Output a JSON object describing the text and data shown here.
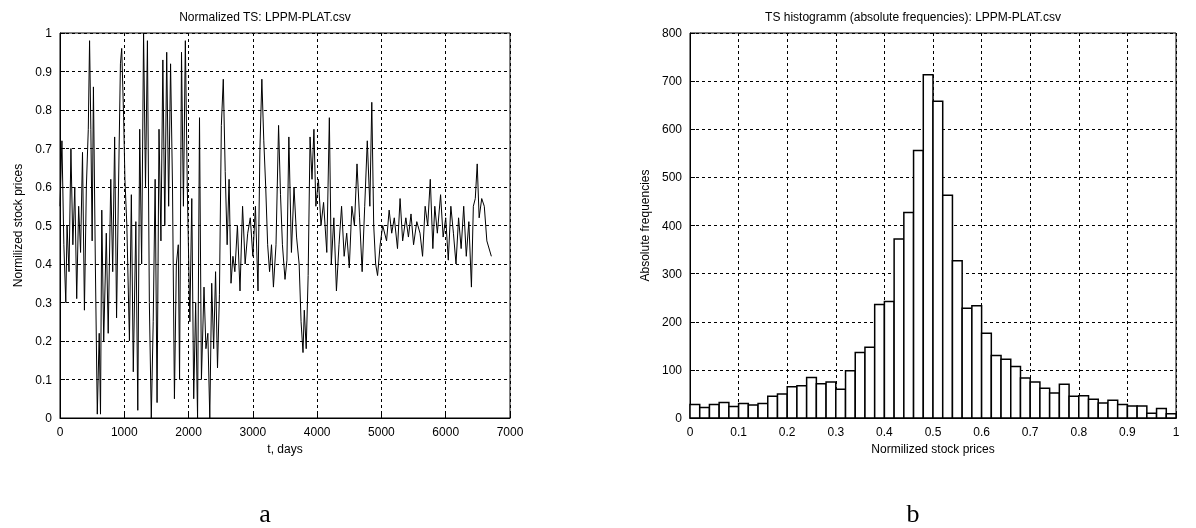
{
  "chart_data": [
    {
      "type": "line",
      "title": "Normalized TS: LPPM-PLAT.csv",
      "xlabel": "t, days",
      "ylabel": "Normilized stock prices",
      "color": "#000000",
      "x": [
        0,
        30,
        60,
        90,
        110,
        140,
        170,
        200,
        230,
        260,
        290,
        320,
        350,
        380,
        410,
        440,
        460,
        480,
        500,
        520,
        550,
        580,
        610,
        630,
        650,
        680,
        720,
        750,
        790,
        820,
        850,
        880,
        910,
        940,
        960,
        990,
        1010,
        1040,
        1080,
        1110,
        1140,
        1180,
        1210,
        1240,
        1270,
        1300,
        1330,
        1360,
        1390,
        1420,
        1450,
        1480,
        1510,
        1540,
        1570,
        1600,
        1630,
        1660,
        1690,
        1720,
        1750,
        1780,
        1810,
        1840,
        1860,
        1890,
        1920,
        1950,
        1980,
        2020,
        2050,
        2080,
        2110,
        2140,
        2170,
        2200,
        2240,
        2270,
        2300,
        2330,
        2360,
        2390,
        2420,
        2450,
        2480,
        2510,
        2540,
        2570,
        2600,
        2630,
        2660,
        2690,
        2720,
        2760,
        2800,
        2840,
        2880,
        2920,
        2960,
        3000,
        3040,
        3080,
        3110,
        3140,
        3170,
        3200,
        3230,
        3260,
        3290,
        3320,
        3360,
        3400,
        3430,
        3460,
        3500,
        3530,
        3560,
        3600,
        3640,
        3680,
        3720,
        3750,
        3780,
        3800,
        3830,
        3860,
        3890,
        3920,
        3950,
        3980,
        4020,
        4060,
        4100,
        4150,
        4190,
        4220,
        4260,
        4300,
        4340,
        4380,
        4420,
        4460,
        4500,
        4540,
        4580,
        4620,
        4660,
        4700,
        4740,
        4780,
        4820,
        4850,
        4880,
        4910,
        4940,
        4980,
        5020,
        5080,
        5120,
        5160,
        5200,
        5250,
        5290,
        5330,
        5380,
        5420,
        5460,
        5500,
        5550,
        5600,
        5640,
        5680,
        5720,
        5760,
        5800,
        5830,
        5870,
        5920,
        5960,
        6000,
        6040,
        6080,
        6120,
        6160,
        6200,
        6240,
        6280,
        6320,
        6360,
        6400,
        6430,
        6460,
        6490,
        6520,
        6560,
        6600,
        6640,
        6710
      ],
      "values": [
        0.55,
        0.72,
        0.45,
        0.3,
        0.5,
        0.38,
        0.7,
        0.45,
        0.6,
        0.31,
        0.55,
        0.43,
        0.69,
        0.28,
        0.6,
        0.75,
        0.98,
        0.75,
        0.46,
        0.86,
        0.4,
        0.01,
        0.22,
        0.01,
        0.54,
        0.2,
        0.48,
        0.22,
        0.62,
        0.38,
        0.73,
        0.26,
        0.6,
        0.92,
        0.96,
        0.78,
        0.62,
        0.5,
        0.2,
        0.58,
        0.12,
        0.51,
        0.02,
        0.75,
        0.4,
        1.0,
        0.6,
        0.98,
        0.3,
        0.0,
        0.25,
        0.62,
        0.04,
        0.75,
        0.46,
        0.93,
        0.5,
        0.95,
        0.55,
        0.92,
        0.6,
        0.05,
        0.4,
        0.45,
        0.1,
        0.95,
        0.55,
        0.98,
        0.6,
        0.25,
        0.57,
        0.05,
        0.3,
        0.0,
        0.78,
        0.1,
        0.34,
        0.18,
        0.22,
        0.0,
        0.35,
        0.18,
        0.38,
        0.13,
        0.32,
        0.76,
        0.88,
        0.64,
        0.45,
        0.62,
        0.35,
        0.42,
        0.38,
        0.5,
        0.33,
        0.55,
        0.4,
        0.48,
        0.52,
        0.42,
        0.55,
        0.33,
        0.7,
        0.88,
        0.72,
        0.6,
        0.45,
        0.38,
        0.45,
        0.34,
        0.45,
        0.76,
        0.58,
        0.45,
        0.36,
        0.41,
        0.73,
        0.43,
        0.6,
        0.47,
        0.4,
        0.25,
        0.17,
        0.28,
        0.18,
        0.37,
        0.73,
        0.62,
        0.75,
        0.55,
        0.62,
        0.5,
        0.56,
        0.43,
        0.78,
        0.4,
        0.52,
        0.33,
        0.45,
        0.55,
        0.42,
        0.48,
        0.39,
        0.55,
        0.5,
        0.66,
        0.52,
        0.38,
        0.55,
        0.72,
        0.55,
        0.82,
        0.5,
        0.4,
        0.37,
        0.45,
        0.5,
        0.46,
        0.54,
        0.48,
        0.52,
        0.44,
        0.57,
        0.46,
        0.52,
        0.47,
        0.53,
        0.45,
        0.51,
        0.48,
        0.42,
        0.55,
        0.5,
        0.62,
        0.44,
        0.55,
        0.48,
        0.58,
        0.47,
        0.52,
        0.41,
        0.55,
        0.48,
        0.4,
        0.52,
        0.44,
        0.55,
        0.42,
        0.51,
        0.34,
        0.55,
        0.57,
        0.66,
        0.52,
        0.57,
        0.55,
        0.46,
        0.42
      ],
      "xlim": [
        0,
        7000
      ],
      "xticks": [
        0,
        1000,
        2000,
        3000,
        4000,
        5000,
        6000,
        7000
      ],
      "ylim": [
        0,
        1
      ],
      "yticks": [
        0,
        0.1,
        0.2,
        0.3,
        0.4,
        0.5,
        0.6,
        0.7,
        0.8,
        0.9,
        1
      ],
      "grid": true,
      "marker": "none",
      "annotations": [
        "a"
      ]
    },
    {
      "type": "histogram",
      "title": "TS histogramm (absolute frequencies): LPPM-PLAT.csv",
      "xlabel": "Normilized stock prices",
      "ylabel": "Absolute frequencies",
      "color": "#ffffff",
      "bins": [
        0,
        0.02,
        0.04,
        0.06,
        0.08,
        0.1,
        0.12,
        0.14,
        0.16,
        0.18,
        0.2,
        0.22,
        0.24,
        0.26,
        0.28,
        0.3,
        0.32,
        0.34,
        0.36,
        0.38,
        0.4,
        0.42,
        0.44,
        0.46,
        0.48,
        0.5,
        0.52,
        0.54,
        0.56,
        0.58,
        0.6,
        0.62,
        0.64,
        0.66,
        0.68,
        0.7,
        0.72,
        0.74,
        0.76,
        0.78,
        0.8,
        0.82,
        0.84,
        0.86,
        0.88,
        0.9,
        0.92,
        0.94,
        0.96,
        0.98,
        1
      ],
      "values": [
        28,
        22,
        28,
        32,
        24,
        30,
        27,
        30,
        45,
        50,
        65,
        67,
        84,
        71,
        75,
        60,
        98,
        136,
        147,
        236,
        242,
        372,
        427,
        556,
        713,
        658,
        463,
        327,
        228,
        233,
        176,
        130,
        122,
        107,
        83,
        75,
        62,
        52,
        70,
        45,
        46,
        39,
        31,
        37,
        28,
        25,
        25,
        10,
        20,
        9
      ],
      "xlim": [
        0,
        1
      ],
      "xticks": [
        0,
        0.1,
        0.2,
        0.3,
        0.4,
        0.5,
        0.6,
        0.7,
        0.8,
        0.9,
        1
      ],
      "ylim": [
        0,
        800
      ],
      "yticks": [
        0,
        100,
        200,
        300,
        400,
        500,
        600,
        700,
        800
      ],
      "grid": true,
      "annotations": [
        "b"
      ]
    }
  ]
}
